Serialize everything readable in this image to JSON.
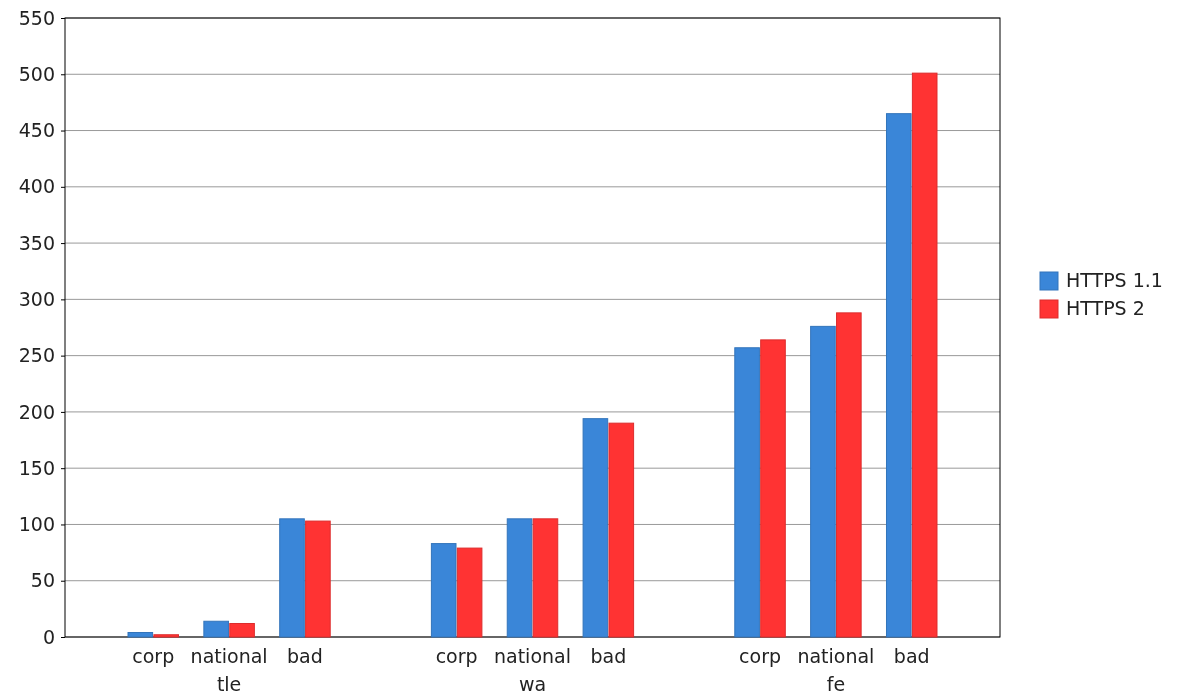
{
  "chart_data": {
    "type": "bar",
    "categories": [
      "corp",
      "national",
      "bad",
      null,
      "corp",
      "national",
      "bad",
      null,
      "corp",
      "national",
      "bad"
    ],
    "series": [
      {
        "name": "HTTPS 1.1",
        "color": "#3a86d8",
        "values": [
          4,
          14,
          105,
          null,
          83,
          105,
          194,
          null,
          257,
          276,
          465
        ]
      },
      {
        "name": "HTTPS 2",
        "color": "#ff3333",
        "values": [
          2,
          12,
          103,
          null,
          79,
          105,
          190,
          null,
          264,
          288,
          501
        ]
      }
    ],
    "annotations": [
      "tle",
      "wa",
      "fe"
    ],
    "ylim": [
      0,
      550
    ],
    "yticks": [
      0,
      50,
      100,
      150,
      200,
      250,
      300,
      350,
      400,
      450,
      500,
      550
    ],
    "grid": "y",
    "legend": "right"
  }
}
